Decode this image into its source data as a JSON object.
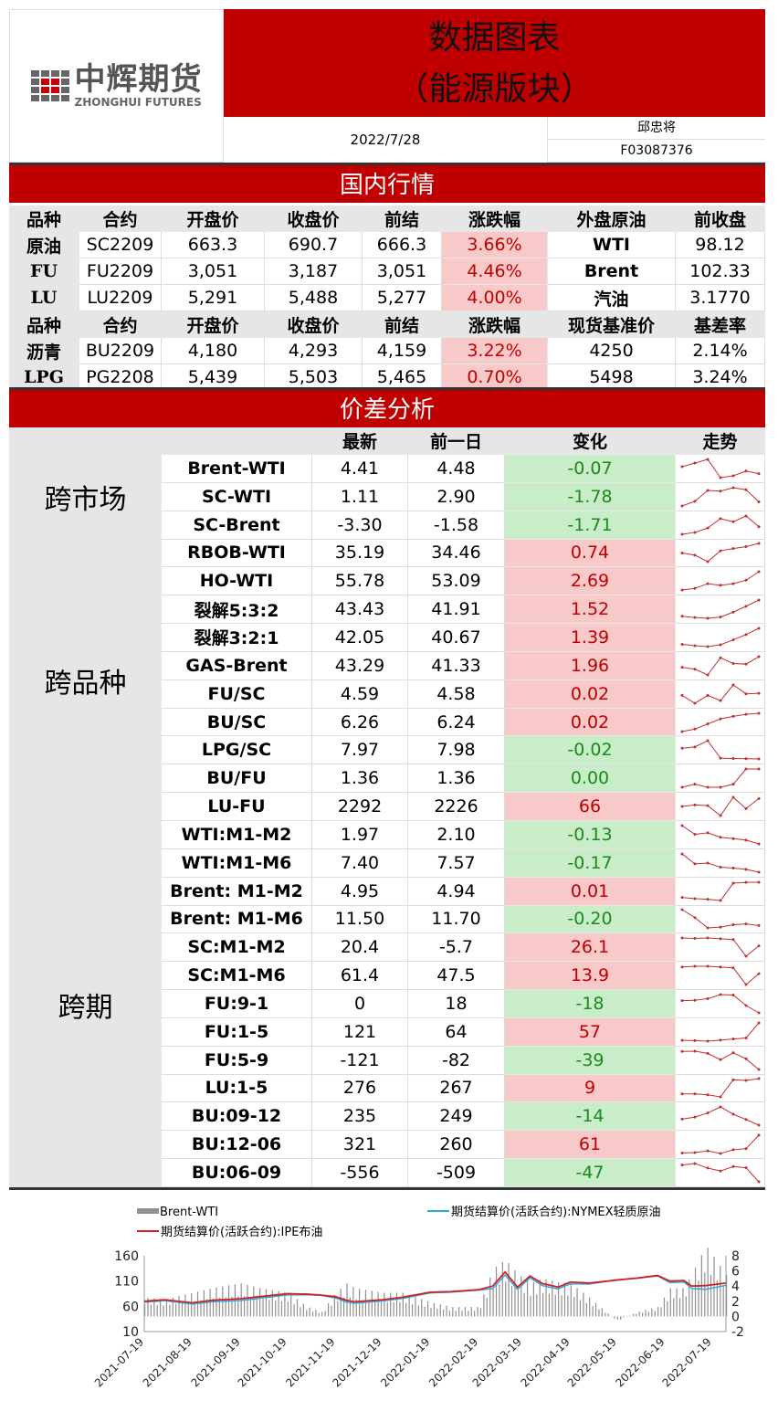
{
  "header": {
    "logo_cn": "中辉期货",
    "logo_en": "ZHONGHUI FUTURES",
    "title_line1": "数据图表",
    "title_line2": "（能源版块）",
    "date": "2022/7/28",
    "author": "邱忠将",
    "license": "F03087376"
  },
  "domestic": {
    "section_title": "国内行情",
    "header1": [
      "品种",
      "合约",
      "开盘价",
      "收盘价",
      "前结",
      "涨跌幅",
      "外盘原油",
      "前收盘"
    ],
    "rows1": [
      [
        "原油",
        "SC2209",
        "663.3",
        "690.7",
        "666.3",
        "3.66%",
        "WTI",
        "98.12"
      ],
      [
        "FU",
        "FU2209",
        "3,051",
        "3,187",
        "3,051",
        "4.46%",
        "Brent",
        "102.33"
      ],
      [
        "LU",
        "LU2209",
        "5,291",
        "5,488",
        "5,277",
        "4.00%",
        "汽油",
        "3.1770"
      ]
    ],
    "header2": [
      "品种",
      "合约",
      "开盘价",
      "收盘价",
      "前结",
      "涨跌幅",
      "现货基准价",
      "基差率"
    ],
    "rows2": [
      [
        "沥青",
        "BU2209",
        "4,180",
        "4,293",
        "4,159",
        "3.22%",
        "4250",
        "2.14%"
      ],
      [
        "LPG",
        "PG2208",
        "5,439",
        "5,503",
        "5,465",
        "0.70%",
        "5498",
        "3.24%"
      ]
    ]
  },
  "spread": {
    "section_title": "价差分析",
    "headers": [
      "最新",
      "前一日",
      "变化",
      "走势"
    ],
    "groups": [
      {
        "label": "跨市场",
        "start": 0,
        "count": 3
      },
      {
        "label": "跨品种",
        "start": 3,
        "count": 10
      },
      {
        "label": "跨期",
        "start": 13,
        "count": 13
      }
    ],
    "rows": [
      {
        "name": "Brent-WTI",
        "latest": "4.41",
        "prev": "4.48",
        "change": "-0.07",
        "trend": [
          4.6,
          4.7,
          4.8,
          4.3,
          4.35,
          4.48,
          4.41
        ]
      },
      {
        "name": "SC-WTI",
        "latest": "1.11",
        "prev": "2.90",
        "change": "-1.78",
        "trend": [
          0.5,
          1.2,
          2.8,
          2.7,
          3.2,
          2.9,
          1.11
        ]
      },
      {
        "name": "SC-Brent",
        "latest": "-3.30",
        "prev": "-1.58",
        "change": "-1.71",
        "trend": [
          -4.5,
          -4.2,
          -3.5,
          -2.0,
          -2.5,
          -1.58,
          -3.3
        ]
      },
      {
        "name": "RBOB-WTI",
        "latest": "35.19",
        "prev": "34.46",
        "change": "0.74",
        "trend": [
          33,
          32.5,
          31,
          33.5,
          34,
          34.46,
          35.19
        ]
      },
      {
        "name": "HO-WTI",
        "latest": "55.78",
        "prev": "53.09",
        "change": "2.69",
        "trend": [
          50,
          50.5,
          52,
          51.5,
          52,
          53.09,
          55.78
        ]
      },
      {
        "name": "裂解5:3:2",
        "latest": "43.43",
        "prev": "41.91",
        "change": "1.52",
        "trend": [
          39.5,
          39.2,
          39,
          39.3,
          40.5,
          41.91,
          43.43
        ]
      },
      {
        "name": "裂解3:2:1",
        "latest": "42.05",
        "prev": "40.67",
        "change": "1.39",
        "trend": [
          38.5,
          38.2,
          38,
          38.4,
          39.5,
          40.67,
          42.05
        ]
      },
      {
        "name": "GAS-Brent",
        "latest": "43.29",
        "prev": "41.33",
        "change": "1.96",
        "trend": [
          40.5,
          40,
          38.5,
          43,
          41.5,
          41.33,
          43.29
        ]
      },
      {
        "name": "FU/SC",
        "latest": "4.59",
        "prev": "4.58",
        "change": "0.02",
        "trend": [
          4.55,
          4.4,
          4.55,
          4.45,
          4.75,
          4.58,
          4.59
        ]
      },
      {
        "name": "BU/SC",
        "latest": "6.26",
        "prev": "6.24",
        "change": "0.02",
        "trend": [
          5.9,
          5.95,
          6.05,
          6.15,
          6.2,
          6.24,
          6.26
        ]
      },
      {
        "name": "LPG/SC",
        "latest": "7.97",
        "prev": "7.98",
        "change": "-0.02",
        "trend": [
          8.4,
          8.45,
          8.7,
          8.0,
          7.99,
          7.98,
          7.97
        ]
      },
      {
        "name": "BU/FU",
        "latest": "1.36",
        "prev": "1.36",
        "change": "0.00",
        "trend": [
          1.3,
          1.31,
          1.3,
          1.3,
          1.31,
          1.36,
          1.36
        ]
      },
      {
        "name": "LU-FU",
        "latest": "2292",
        "prev": "2226",
        "change": "66",
        "trend": [
          2240,
          2250,
          2245,
          2180,
          2300,
          2226,
          2292
        ]
      },
      {
        "name": "WTI:M1-M2",
        "latest": "1.97",
        "prev": "2.10",
        "change": "-0.13",
        "trend": [
          2.6,
          2.3,
          2.35,
          2.2,
          2.15,
          2.1,
          1.97
        ]
      },
      {
        "name": "WTI:M1-M6",
        "latest": "7.40",
        "prev": "7.57",
        "change": "-0.17",
        "trend": [
          8.5,
          7.9,
          7.95,
          7.7,
          7.65,
          7.57,
          7.4
        ]
      },
      {
        "name": "Brent: M1-M2",
        "latest": "4.95",
        "prev": "4.94",
        "change": "0.01",
        "trend": [
          2.5,
          2.3,
          2.2,
          2.0,
          4.8,
          4.94,
          4.95
        ]
      },
      {
        "name": "Brent: M1-M6",
        "latest": "11.50",
        "prev": "11.70",
        "change": "-0.20",
        "trend": [
          13.5,
          12.5,
          11.2,
          11.3,
          11.6,
          11.7,
          11.5
        ]
      },
      {
        "name": "SC:M1-M2",
        "latest": "20.4",
        "prev": "-5.7",
        "change": "26.1",
        "trend": [
          40,
          39,
          40,
          38,
          36,
          -5.7,
          20.4
        ]
      },
      {
        "name": "SC:M1-M6",
        "latest": "61.4",
        "prev": "47.5",
        "change": "13.9",
        "trend": [
          70,
          71,
          71,
          70,
          69,
          47.5,
          61.4
        ]
      },
      {
        "name": "FU:9-1",
        "latest": "0",
        "prev": "18",
        "change": "-18",
        "trend": [
          30,
          31,
          35,
          45,
          44,
          18,
          0
        ]
      },
      {
        "name": "FU:1-5",
        "latest": "121",
        "prev": "64",
        "change": "57",
        "trend": [
          55,
          54,
          52,
          56,
          60,
          64,
          121
        ]
      },
      {
        "name": "FU:5-9",
        "latest": "-121",
        "prev": "-82",
        "change": "-39",
        "trend": [
          -55,
          -54,
          -62,
          -85,
          -60,
          -82,
          -121
        ]
      },
      {
        "name": "LU:1-5",
        "latest": "276",
        "prev": "267",
        "change": "9",
        "trend": [
          200,
          200,
          195,
          185,
          270,
          267,
          276
        ]
      },
      {
        "name": "BU:09-12",
        "latest": "235",
        "prev": "249",
        "change": "-14",
        "trend": [
          250,
          255,
          265,
          280,
          262,
          249,
          235
        ]
      },
      {
        "name": "BU:12-06",
        "latest": "321",
        "prev": "260",
        "change": "61",
        "trend": [
          240,
          242,
          250,
          238,
          255,
          260,
          321
        ]
      },
      {
        "name": "BU:06-09",
        "latest": "-556",
        "prev": "-509",
        "change": "-47",
        "trend": [
          -500,
          -495,
          -510,
          -520,
          -505,
          -509,
          -556
        ]
      }
    ]
  },
  "chart_data": {
    "type": "line",
    "legend": [
      "Brent-WTI",
      "期货结算价(活跃合约):NYMEX轻质原油",
      "期货结算价(活跃合约):IPE布油"
    ],
    "legend_placement": "top",
    "colors": {
      "Brent-WTI": "#909090",
      "wti": "#2ea8df",
      "brent": "#d42020"
    },
    "ylim_left": [
      10,
      160
    ],
    "yticks_left": [
      10,
      60,
      110,
      160
    ],
    "ylim_right": [
      -2,
      8
    ],
    "yticks_right": [
      -2,
      0,
      2,
      4,
      6,
      8
    ],
    "xticks": [
      "2021-07-19",
      "2021-08-19",
      "2021-09-19",
      "2021-10-19",
      "2021-11-19",
      "2021-12-19",
      "2022-01-19",
      "2022-02-19",
      "2022-03-19",
      "2022-04-19",
      "2022-05-19",
      "2022-06-19",
      "2022-07-19"
    ],
    "dates": [
      "2021-07-19",
      "2021-08-01",
      "2021-08-19",
      "2021-09-01",
      "2021-09-19",
      "2021-10-01",
      "2021-10-19",
      "2021-11-01",
      "2021-11-10",
      "2021-11-19",
      "2021-11-26",
      "2021-12-01",
      "2021-12-19",
      "2022-01-01",
      "2022-01-19",
      "2022-02-01",
      "2022-02-19",
      "2022-02-28",
      "2022-03-08",
      "2022-03-16",
      "2022-03-24",
      "2022-04-01",
      "2022-04-11",
      "2022-04-19",
      "2022-05-01",
      "2022-05-19",
      "2022-06-01",
      "2022-06-14",
      "2022-06-22",
      "2022-07-01",
      "2022-07-06",
      "2022-07-15",
      "2022-07-28"
    ],
    "brent": [
      70,
      73,
      67,
      72,
      75,
      79,
      85,
      84,
      82,
      79,
      72,
      69,
      73,
      78,
      88,
      89,
      93,
      100,
      128,
      98,
      120,
      105,
      98,
      108,
      106,
      112,
      116,
      121,
      110,
      111,
      100,
      101,
      106
    ],
    "spread": [
      2.0,
      1.8,
      2.5,
      3.0,
      3.5,
      3.0,
      2.5,
      1.0,
      0.5,
      2.5,
      3.5,
      3.0,
      2.5,
      2.5,
      1.5,
      1.0,
      1.0,
      5.0,
      6.0,
      4.5,
      3.5,
      4.0,
      3.6,
      3.5,
      2.0,
      -0.5,
      0.5,
      1.0,
      3.0,
      3.0,
      4.5,
      7.5,
      4.4
    ]
  }
}
